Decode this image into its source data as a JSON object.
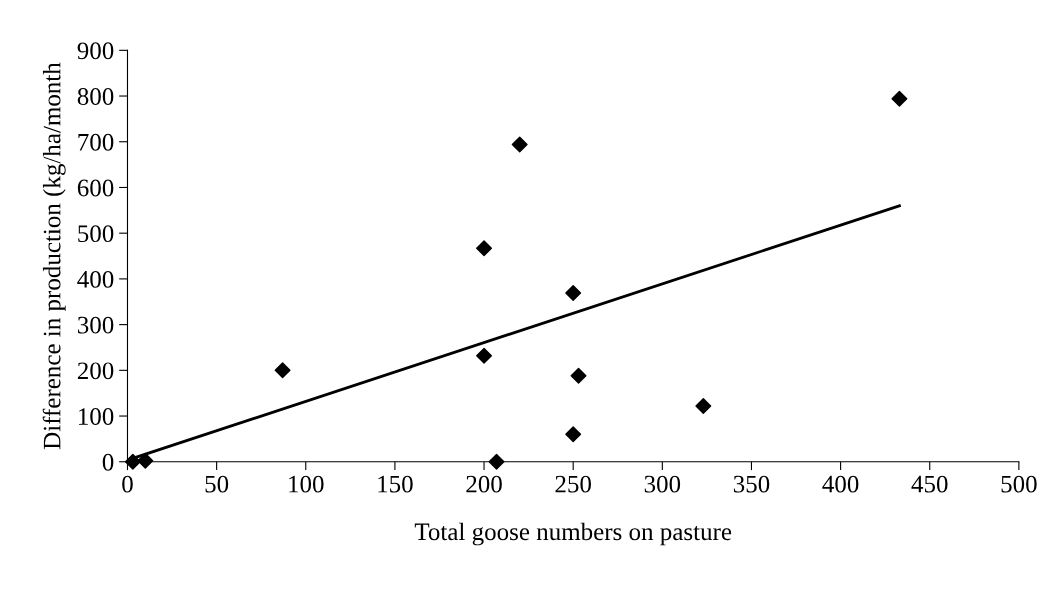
{
  "chart_data": {
    "type": "scatter",
    "xlabel": "Total goose numbers on pasture",
    "ylabel": "Difference in production (kg/ha/month",
    "series": [
      {
        "color": "#000000",
        "marker": "diamond",
        "x": [
          3,
          10,
          87,
          200,
          200,
          220,
          250,
          253,
          250,
          207,
          323,
          433
        ],
        "values": [
          0,
          2,
          200,
          467,
          232,
          694,
          369,
          188,
          60,
          0,
          122,
          794
        ]
      },
      {
        "type": "line",
        "color": "#000000",
        "marker": "none",
        "line_style": "solid",
        "x": [
          5,
          433
        ],
        "values": [
          10,
          560
        ]
      }
    ],
    "xlim": [
      0,
      500
    ],
    "xticks": [
      0,
      50,
      100,
      150,
      200,
      250,
      300,
      350,
      400,
      450,
      500
    ],
    "ylim": [
      0,
      900
    ],
    "yticks": [
      0,
      100,
      200,
      300,
      400,
      500,
      600,
      700,
      800,
      900
    ],
    "grid": false,
    "legend": false
  }
}
